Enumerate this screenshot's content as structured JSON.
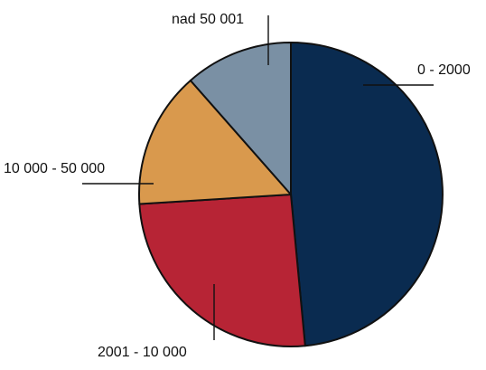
{
  "chart_data": {
    "type": "pie",
    "categories": [
      "0 - 2000",
      "2001 - 10 000",
      "10 000 - 50 000",
      "nad 50 001"
    ],
    "values": [
      48.5,
      25.5,
      14.5,
      11.5
    ],
    "colors": [
      "#0a2b50",
      "#b72435",
      "#d9994d",
      "#7a90a4"
    ],
    "start_angle": "12 o'clock",
    "direction": "clockwise",
    "legend": "none",
    "labels": "outside with leader lines"
  }
}
